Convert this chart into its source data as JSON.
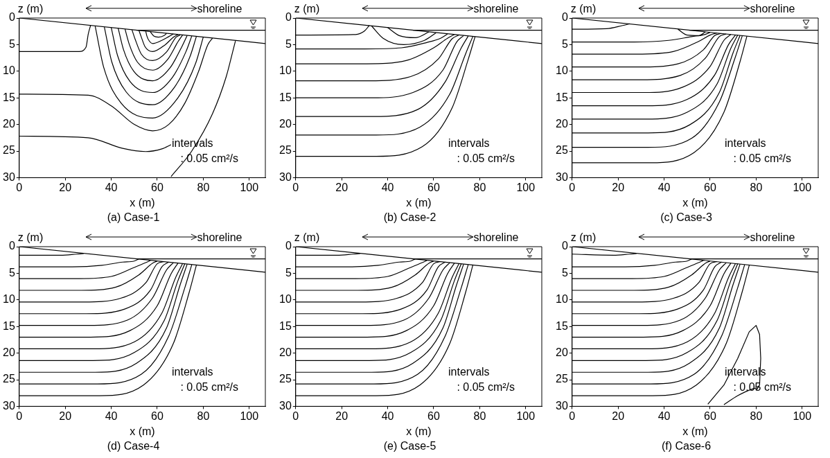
{
  "chart_data": [
    {
      "type": "line",
      "title": "(a) Case-1",
      "xlabel": "x (m)",
      "ylabel": "z (m)",
      "xlim": [
        0,
        107
      ],
      "ylim": [
        30,
        0
      ],
      "xticks": [
        0,
        20,
        40,
        60,
        80,
        100
      ],
      "yticks": [
        0,
        5,
        10,
        15,
        20,
        25,
        30
      ],
      "marker": "none",
      "annotations": [
        "shoreline",
        "intervals",
        ": 0.05 cm²/s"
      ],
      "series": [
        {
          "color": "#000000",
          "x": [
            0,
            107
          ],
          "values": [
            0,
            4.8
          ]
        },
        {
          "color": "#000000",
          "x": [
            51,
            107
          ],
          "values": [
            2.3,
            2.3
          ]
        },
        {
          "color": "#000000",
          "x": [
            0,
            26,
            29,
            30,
            31
          ],
          "values": [
            6.3,
            6.3,
            5.5,
            3,
            1.4
          ]
        },
        {
          "color": "#000000",
          "x": [
            0,
            30,
            40,
            50,
            58,
            65,
            72,
            78,
            82,
            84
          ],
          "values": [
            14.3,
            14.5,
            16.5,
            20,
            21.2,
            20,
            16,
            10,
            5,
            3.8
          ]
        },
        {
          "color": "#000000",
          "x": [
            0,
            30,
            45,
            55,
            62,
            66
          ],
          "values": [
            22.2,
            22.5,
            24.5,
            25.1,
            24.6,
            23.8
          ]
        },
        {
          "color": "#000000",
          "x": [
            66,
            75,
            84,
            90,
            93,
            94
          ],
          "values": [
            29.8,
            25,
            18,
            11,
            6,
            4.3
          ]
        },
        {
          "color": "#000000",
          "x": [
            33,
            36.8,
            44.3,
            58,
            69,
            76.7,
            80
          ],
          "values": [
            1.5,
            9.4,
            16,
            18.8,
            15,
            8.5,
            3.6
          ]
        },
        {
          "color": "#000000",
          "x": [
            37,
            40.2,
            46.5,
            58,
            67.5,
            74.2,
            77
          ],
          "values": [
            1.7,
            8.2,
            13.9,
            16.3,
            13,
            7.3,
            3.5
          ]
        },
        {
          "color": "#000000",
          "x": [
            40,
            42.7,
            48.1,
            58,
            66.5,
            72.5,
            75
          ],
          "values": [
            1.8,
            7,
            11.9,
            14,
            11.2,
            6.3,
            3.4
          ]
        },
        {
          "color": "#000000",
          "x": [
            43,
            45.3,
            49.8,
            58,
            65.5,
            70.8,
            73
          ],
          "values": [
            1.9,
            5.9,
            10,
            11.8,
            9.4,
            5.3,
            3.3
          ]
        },
        {
          "color": "#000000",
          "x": [
            46,
            47.8,
            51.4,
            58,
            64.5,
            69.1,
            71
          ],
          "values": [
            2.1,
            4.9,
            8.3,
            9.8,
            7.8,
            4.4,
            3.2
          ]
        },
        {
          "color": "#000000",
          "x": [
            49,
            50.4,
            53.1,
            58,
            64,
            68.2,
            70
          ],
          "values": [
            2.2,
            4,
            6.8,
            8,
            6.4,
            3.6,
            3.2
          ]
        },
        {
          "color": "#000000",
          "x": [
            52,
            53,
            54.7,
            58,
            63.5,
            67,
            69
          ],
          "values": [
            2.3,
            3.5,
            5.4,
            6.3,
            5,
            3.6,
            3.1
          ]
        },
        {
          "color": "#000000",
          "x": [
            55,
            55.5,
            56.5,
            58,
            62,
            65,
            67
          ],
          "values": [
            2.5,
            3.4,
            4.3,
            4.8,
            4.2,
            3.5,
            3
          ]
        },
        {
          "color": "#000000",
          "x": [
            57,
            58.5,
            60.5,
            63,
            64
          ],
          "values": [
            2.6,
            3.4,
            3.6,
            3.3,
            2.9
          ]
        }
      ]
    },
    {
      "type": "line",
      "title": "(b) Case-2",
      "xlabel": "x (m)",
      "ylabel": "z (m)",
      "xlim": [
        0,
        107
      ],
      "ylim": [
        30,
        0
      ],
      "xticks": [
        0,
        20,
        40,
        60,
        80,
        100
      ],
      "yticks": [
        0,
        5,
        10,
        15,
        20,
        25,
        30
      ],
      "marker": "none",
      "annotations": [
        "shoreline",
        "intervals",
        ": 0.05 cm²/s"
      ],
      "series": [
        {
          "color": "#000000",
          "x": [
            0,
            107
          ],
          "values": [
            0,
            4.8
          ]
        },
        {
          "color": "#000000",
          "x": [
            51,
            107
          ],
          "values": [
            2.3,
            2.3
          ]
        },
        {
          "color": "#000000",
          "x": [
            0,
            26,
            30,
            32
          ],
          "values": [
            3.2,
            3.1,
            2.4,
            1.4
          ]
        },
        {
          "color": "#000000",
          "x": [
            0,
            30,
            46,
            57,
            63,
            66
          ],
          "values": [
            5.8,
            5.8,
            5.6,
            4.6,
            3.8,
            3
          ]
        },
        {
          "color": "#000000",
          "x": [
            0,
            31,
            48,
            60,
            66,
            69
          ],
          "values": [
            8.6,
            8.6,
            8,
            5.6,
            3.8,
            3.1
          ]
        },
        {
          "color": "#000000",
          "x": [
            0,
            32,
            50,
            62,
            68,
            71
          ],
          "values": [
            11.8,
            11.8,
            11,
            7.7,
            3.9,
            3.2
          ]
        },
        {
          "color": "#000000",
          "x": [
            0,
            33,
            51,
            64,
            70,
            73
          ],
          "values": [
            15,
            15,
            14,
            9.8,
            4.5,
            3.3
          ]
        },
        {
          "color": "#000000",
          "x": [
            0,
            34,
            53,
            65,
            72,
            75
          ],
          "values": [
            18.5,
            18.5,
            17.2,
            12,
            5.6,
            3.4
          ]
        },
        {
          "color": "#000000",
          "x": [
            0,
            35,
            54,
            67,
            74,
            77
          ],
          "values": [
            22,
            22,
            20.5,
            14.3,
            6.6,
            3.5
          ]
        },
        {
          "color": "#000000",
          "x": [
            0,
            35,
            55,
            68,
            75,
            78
          ],
          "values": [
            26,
            26,
            24.2,
            16.9,
            7.8,
            3.5
          ]
        },
        {
          "color": "#000000",
          "x": [
            33,
            38,
            47,
            56,
            61
          ],
          "values": [
            1.5,
            3.8,
            5,
            4.2,
            2.8
          ]
        },
        {
          "color": "#000000",
          "x": [
            40,
            45,
            52,
            58
          ],
          "values": [
            1.8,
            3.3,
            3.7,
            2.6
          ]
        }
      ]
    },
    {
      "type": "line",
      "title": "(c) Case-3",
      "xlabel": "x (m)",
      "ylabel": "z (m)",
      "xlim": [
        0,
        107
      ],
      "ylim": [
        30,
        0
      ],
      "xticks": [
        0,
        20,
        40,
        60,
        80,
        100
      ],
      "yticks": [
        0,
        5,
        10,
        15,
        20,
        25,
        30
      ],
      "marker": "none",
      "annotations": [
        "shoreline",
        "intervals",
        ": 0.05 cm²/s"
      ],
      "series": [
        {
          "color": "#000000",
          "x": [
            0,
            107
          ],
          "values": [
            0,
            4.8
          ]
        },
        {
          "color": "#000000",
          "x": [
            51,
            107
          ],
          "values": [
            2.3,
            2.3
          ]
        },
        {
          "color": "#000000",
          "x": [
            0,
            15,
            22,
            25
          ],
          "values": [
            2.1,
            2,
            1.4,
            1.1
          ]
        },
        {
          "color": "#000000",
          "x": [
            0,
            27,
            42,
            52,
            57.6,
            60
          ],
          "values": [
            4.5,
            4.5,
            4.2,
            3.5,
            3.1,
            2.7
          ]
        },
        {
          "color": "#000000",
          "x": [
            0,
            28,
            44,
            55,
            60,
            63
          ],
          "values": [
            6.8,
            6.8,
            6.3,
            4.4,
            3.2,
            2.8
          ]
        },
        {
          "color": "#000000",
          "x": [
            0,
            29,
            46,
            57,
            62,
            65
          ],
          "values": [
            9.2,
            9.2,
            8.6,
            6,
            3.3,
            2.9
          ]
        },
        {
          "color": "#000000",
          "x": [
            0,
            30,
            47,
            58,
            64,
            67
          ],
          "values": [
            11.6,
            11.6,
            10.8,
            7.5,
            3.5,
            3
          ]
        },
        {
          "color": "#000000",
          "x": [
            0,
            31,
            48,
            60,
            66,
            69
          ],
          "values": [
            14,
            14,
            13,
            9.1,
            4.2,
            3.1
          ]
        },
        {
          "color": "#000000",
          "x": [
            0,
            32,
            50,
            62,
            68,
            71
          ],
          "values": [
            16.5,
            16.5,
            15.3,
            10.7,
            5,
            3.2
          ]
        },
        {
          "color": "#000000",
          "x": [
            0,
            32,
            50,
            63,
            69,
            72
          ],
          "values": [
            19,
            19,
            17.7,
            12.4,
            5.7,
            3.2
          ]
        },
        {
          "color": "#000000",
          "x": [
            0,
            33,
            51,
            64,
            70,
            73
          ],
          "values": [
            21.6,
            21.6,
            20.1,
            14,
            6.5,
            3.3
          ]
        },
        {
          "color": "#000000",
          "x": [
            0,
            33,
            52,
            64,
            71,
            74
          ],
          "values": [
            24.3,
            24.3,
            22.6,
            15.8,
            7.3,
            3.3
          ]
        },
        {
          "color": "#000000",
          "x": [
            0,
            34,
            53,
            66,
            73,
            76
          ],
          "values": [
            27.2,
            27.2,
            25.3,
            17.7,
            8.2,
            3.4
          ]
        },
        {
          "color": "#000000",
          "x": [
            46,
            50,
            55,
            58
          ],
          "values": [
            2.1,
            3.2,
            3.3,
            2.6
          ]
        }
      ]
    },
    {
      "type": "line",
      "title": "(d) Case-4",
      "xlabel": "x (m)",
      "ylabel": "z (m)",
      "xlim": [
        0,
        107
      ],
      "ylim": [
        30,
        0
      ],
      "xticks": [
        0,
        20,
        40,
        60,
        80,
        100
      ],
      "yticks": [
        0,
        5,
        10,
        15,
        20,
        25,
        30
      ],
      "marker": "none",
      "annotations": [
        "shoreline",
        "intervals",
        ": 0.05 cm²/s"
      ],
      "series": [
        {
          "color": "#000000",
          "x": [
            0,
            107
          ],
          "values": [
            0,
            4.8
          ]
        },
        {
          "color": "#000000",
          "x": [
            51,
            107
          ],
          "values": [
            2.3,
            2.3
          ]
        },
        {
          "color": "#000000",
          "x": [
            0,
            18,
            25,
            28
          ],
          "values": [
            1.6,
            1.6,
            1.4,
            1.3
          ]
        },
        {
          "color": "#000000",
          "x": [
            0,
            23,
            36,
            45,
            50,
            52
          ],
          "values": [
            3.8,
            3.8,
            3.5,
            2.9,
            2.7,
            2.3
          ]
        },
        {
          "color": "#000000",
          "x": [
            0,
            26,
            40,
            50,
            55,
            57
          ],
          "values": [
            6,
            6,
            5.6,
            3.9,
            3,
            2.6
          ]
        },
        {
          "color": "#000000",
          "x": [
            0,
            27,
            42,
            52,
            58,
            60
          ],
          "values": [
            8.2,
            8.2,
            7.6,
            5.3,
            3.1,
            2.7
          ]
        },
        {
          "color": "#000000",
          "x": [
            0,
            28,
            44,
            55,
            60,
            63
          ],
          "values": [
            10.4,
            10.4,
            9.7,
            6.8,
            3.2,
            2.8
          ]
        },
        {
          "color": "#000000",
          "x": [
            0,
            29,
            46,
            57,
            62,
            65
          ],
          "values": [
            12.6,
            12.6,
            11.7,
            8.2,
            3.8,
            2.9
          ]
        },
        {
          "color": "#000000",
          "x": [
            0,
            30,
            47,
            58,
            64,
            67
          ],
          "values": [
            14.8,
            14.8,
            13.8,
            9.6,
            4.4,
            3
          ]
        },
        {
          "color": "#000000",
          "x": [
            0,
            31,
            48,
            60,
            66,
            69
          ],
          "values": [
            17,
            17,
            15.8,
            11.1,
            5.1,
            3.1
          ]
        },
        {
          "color": "#000000",
          "x": [
            0,
            32,
            50,
            62,
            68,
            71
          ],
          "values": [
            19.2,
            19.2,
            17.9,
            12.5,
            5.8,
            3.2
          ]
        },
        {
          "color": "#000000",
          "x": [
            0,
            32,
            50,
            63,
            69,
            72
          ],
          "values": [
            21.4,
            21.4,
            19.9,
            13.9,
            6.4,
            3.2
          ]
        },
        {
          "color": "#000000",
          "x": [
            0,
            33,
            51,
            64,
            70,
            73
          ],
          "values": [
            23.6,
            23.6,
            21.9,
            15.3,
            7.1,
            3.3
          ]
        },
        {
          "color": "#000000",
          "x": [
            0,
            34,
            53,
            65,
            72,
            75
          ],
          "values": [
            25.8,
            25.8,
            24,
            16.8,
            7.7,
            3.4
          ]
        },
        {
          "color": "#000000",
          "x": [
            0,
            35,
            54,
            67,
            74,
            77
          ],
          "values": [
            28,
            28,
            26,
            18.2,
            8.4,
            3.5
          ]
        }
      ]
    },
    {
      "type": "line",
      "title": "(e) Case-5",
      "xlabel": "x (m)",
      "ylabel": "z (m)",
      "xlim": [
        0,
        107
      ],
      "ylim": [
        30,
        0
      ],
      "xticks": [
        0,
        20,
        40,
        60,
        80,
        100
      ],
      "yticks": [
        0,
        5,
        10,
        15,
        20,
        25,
        30
      ],
      "marker": "none",
      "annotations": [
        "shoreline",
        "intervals",
        ": 0.05 cm²/s"
      ],
      "series": [
        {
          "color": "#000000",
          "x": [
            0,
            107
          ],
          "values": [
            0,
            4.8
          ]
        },
        {
          "color": "#000000",
          "x": [
            51,
            107
          ],
          "values": [
            2.3,
            2.3
          ]
        },
        {
          "color": "#000000",
          "x": [
            0,
            18,
            25,
            28
          ],
          "values": [
            1.6,
            1.6,
            1.4,
            1.3
          ]
        },
        {
          "color": "#000000",
          "x": [
            0,
            23,
            36,
            45,
            50,
            52
          ],
          "values": [
            3.8,
            3.8,
            3.5,
            2.9,
            2.7,
            2.3
          ]
        },
        {
          "color": "#000000",
          "x": [
            0,
            26,
            40,
            50,
            55,
            57
          ],
          "values": [
            6,
            6,
            5.6,
            3.9,
            3,
            2.6
          ]
        },
        {
          "color": "#000000",
          "x": [
            0,
            27,
            42,
            52,
            58,
            60
          ],
          "values": [
            8.2,
            8.2,
            7.6,
            5.3,
            3.1,
            2.7
          ]
        },
        {
          "color": "#000000",
          "x": [
            0,
            28,
            44,
            55,
            60,
            63
          ],
          "values": [
            10.4,
            10.4,
            9.7,
            6.8,
            3.2,
            2.8
          ]
        },
        {
          "color": "#000000",
          "x": [
            0,
            29,
            46,
            57,
            62,
            65
          ],
          "values": [
            12.6,
            12.6,
            11.7,
            8.2,
            3.8,
            2.9
          ]
        },
        {
          "color": "#000000",
          "x": [
            0,
            30,
            47,
            58,
            64,
            67
          ],
          "values": [
            14.8,
            14.8,
            13.8,
            9.6,
            4.4,
            3
          ]
        },
        {
          "color": "#000000",
          "x": [
            0,
            31,
            48,
            60,
            66,
            69
          ],
          "values": [
            17,
            17,
            15.8,
            11.1,
            5.1,
            3.1
          ]
        },
        {
          "color": "#000000",
          "x": [
            0,
            32,
            50,
            62,
            68,
            71
          ],
          "values": [
            19.2,
            19.2,
            17.9,
            12.5,
            5.8,
            3.2
          ]
        },
        {
          "color": "#000000",
          "x": [
            0,
            32,
            50,
            63,
            69,
            72
          ],
          "values": [
            21.4,
            21.4,
            19.9,
            13.9,
            6.4,
            3.2
          ]
        },
        {
          "color": "#000000",
          "x": [
            0,
            33,
            51,
            64,
            70,
            73
          ],
          "values": [
            23.6,
            23.6,
            21.9,
            15.3,
            7.1,
            3.3
          ]
        },
        {
          "color": "#000000",
          "x": [
            0,
            34,
            53,
            65,
            72,
            75
          ],
          "values": [
            25.8,
            25.8,
            24,
            16.8,
            7.7,
            3.4
          ]
        },
        {
          "color": "#000000",
          "x": [
            0,
            35,
            54,
            67,
            74,
            77
          ],
          "values": [
            28,
            28,
            26,
            18.2,
            8.4,
            3.5
          ]
        }
      ]
    },
    {
      "type": "line",
      "title": "(f) Case-6",
      "xlabel": "x (m)",
      "ylabel": "z (m)",
      "xlim": [
        0,
        107
      ],
      "ylim": [
        30,
        0
      ],
      "xticks": [
        0,
        20,
        40,
        60,
        80,
        100
      ],
      "yticks": [
        0,
        5,
        10,
        15,
        20,
        25,
        30
      ],
      "marker": "none",
      "annotations": [
        "shoreline",
        "intervals",
        ": 0.05 cm²/s"
      ],
      "series": [
        {
          "color": "#000000",
          "x": [
            0,
            107
          ],
          "values": [
            0,
            4.8
          ]
        },
        {
          "color": "#000000",
          "x": [
            51,
            107
          ],
          "values": [
            2.3,
            2.3
          ]
        },
        {
          "color": "#000000",
          "x": [
            0,
            18,
            25,
            28
          ],
          "values": [
            1.4,
            1.6,
            1.4,
            1.3
          ]
        },
        {
          "color": "#000000",
          "x": [
            0,
            23,
            36,
            45,
            50,
            52
          ],
          "values": [
            3.8,
            3.8,
            3.5,
            2.9,
            2.7,
            2.3
          ]
        },
        {
          "color": "#000000",
          "x": [
            0,
            26,
            40,
            50,
            55,
            57
          ],
          "values": [
            6,
            6,
            5.6,
            3.9,
            3,
            2.6
          ]
        },
        {
          "color": "#000000",
          "x": [
            0,
            27,
            42,
            52,
            58,
            60
          ],
          "values": [
            8.2,
            8.2,
            7.6,
            5.3,
            3.1,
            2.7
          ]
        },
        {
          "color": "#000000",
          "x": [
            0,
            28,
            44,
            55,
            60,
            63
          ],
          "values": [
            10.4,
            10.4,
            9.7,
            6.8,
            3.2,
            2.8
          ]
        },
        {
          "color": "#000000",
          "x": [
            0,
            29,
            46,
            57,
            62,
            65
          ],
          "values": [
            12.6,
            12.6,
            11.7,
            8.2,
            3.8,
            2.9
          ]
        },
        {
          "color": "#000000",
          "x": [
            0,
            30,
            47,
            58,
            64,
            67
          ],
          "values": [
            14.8,
            14.8,
            13.8,
            9.6,
            4.4,
            3
          ]
        },
        {
          "color": "#000000",
          "x": [
            0,
            31,
            48,
            60,
            66,
            69
          ],
          "values": [
            17,
            17,
            15.8,
            11.1,
            5.1,
            3.1
          ]
        },
        {
          "color": "#000000",
          "x": [
            0,
            32,
            50,
            62,
            68,
            71
          ],
          "values": [
            19.2,
            19.2,
            17.9,
            12.5,
            5.8,
            3.2
          ]
        },
        {
          "color": "#000000",
          "x": [
            0,
            32,
            50,
            63,
            69,
            72
          ],
          "values": [
            21.4,
            21.4,
            19.9,
            13.9,
            6.4,
            3.2
          ]
        },
        {
          "color": "#000000",
          "x": [
            0,
            33,
            51,
            64,
            70,
            73
          ],
          "values": [
            23.6,
            23.6,
            21.9,
            15.3,
            7.1,
            3.3
          ]
        },
        {
          "color": "#000000",
          "x": [
            0,
            34,
            53,
            65,
            72,
            75
          ],
          "values": [
            25.8,
            25.8,
            24,
            16.8,
            7.7,
            3.4
          ]
        },
        {
          "color": "#000000",
          "x": [
            0,
            35,
            54,
            67,
            74,
            77
          ],
          "values": [
            28,
            28,
            26,
            18.2,
            8.4,
            3.5
          ]
        },
        {
          "color": "#000000",
          "x": [
            59,
            66,
            72,
            77,
            80,
            81.5,
            82,
            81.5,
            80
          ],
          "values": [
            29.6,
            26,
            21,
            16,
            14.8,
            16.5,
            21,
            26,
            27
          ]
        },
        {
          "color": "#000000",
          "x": [
            66,
            72,
            78,
            81
          ],
          "values": [
            29.7,
            28,
            26.8,
            26.5
          ]
        }
      ]
    }
  ]
}
